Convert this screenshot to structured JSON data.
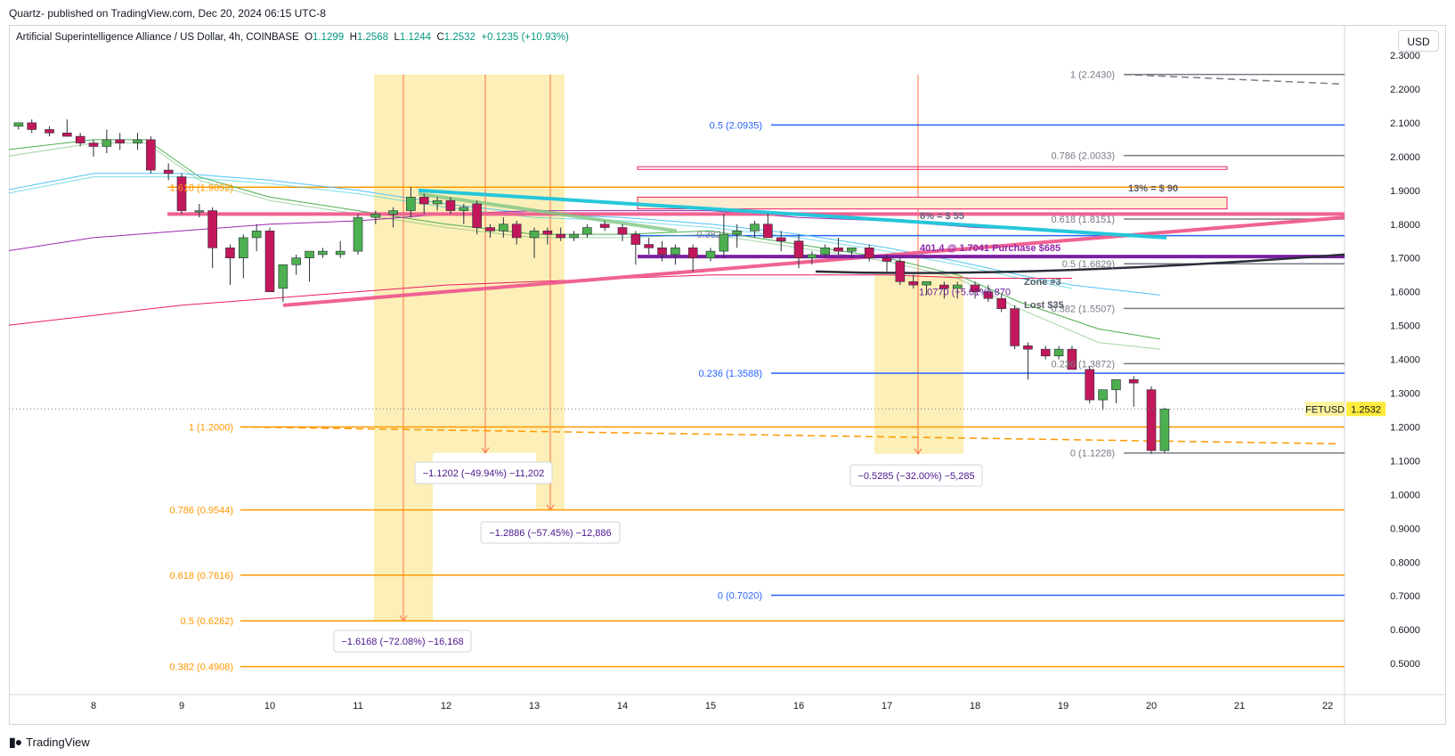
{
  "header": {
    "published": "Quartz- published on TradingView.com, Dec 20, 2024 06:15 UTC-8"
  },
  "symbol": {
    "name": "Artificial Superintelligence Alliance / US Dollar, 4h, COINBASE",
    "o_label": "O",
    "o_value": "1.1299",
    "h_label": "H",
    "h_value": "1.2568",
    "l_label": "L",
    "l_value": "1.1244",
    "c_label": "C",
    "c_value": "1.2532",
    "change": "+0.1235 (+10.93%)"
  },
  "currency": "USD",
  "price_tag": {
    "ticker": "FETUSD",
    "value": "1.2532"
  },
  "footer": {
    "brand": "TradingView"
  },
  "chart_data": {
    "type": "candlestick",
    "ylim": [
      0.48,
      2.38
    ],
    "yticks": [
      "2.3000",
      "2.2000",
      "2.1000",
      "2.0000",
      "1.9000",
      "1.8000",
      "1.7000",
      "1.6000",
      "1.5000",
      "1.4000",
      "1.3000",
      "1.2000",
      "1.1000",
      "1.0000",
      "0.9000",
      "0.8000",
      "0.7000",
      "0.6000",
      "0.5000"
    ],
    "xticks": [
      "8",
      "9",
      "10",
      "11",
      "12",
      "13",
      "14",
      "15",
      "16",
      "17",
      "18",
      "19",
      "20",
      "21",
      "22"
    ],
    "last_price": 1.2532,
    "candles": [
      [
        7.15,
        2.09,
        2.1,
        2.08,
        2.1
      ],
      [
        7.3,
        2.1,
        2.11,
        2.07,
        2.08
      ],
      [
        7.5,
        2.08,
        2.09,
        2.06,
        2.07
      ],
      [
        7.7,
        2.07,
        2.11,
        2.06,
        2.06
      ],
      [
        7.85,
        2.06,
        2.07,
        2.03,
        2.04
      ],
      [
        8.0,
        2.04,
        2.05,
        2.0,
        2.03
      ],
      [
        8.15,
        2.03,
        2.08,
        2.01,
        2.05
      ],
      [
        8.3,
        2.05,
        2.07,
        2.02,
        2.04
      ],
      [
        8.5,
        2.04,
        2.07,
        2.02,
        2.05
      ],
      [
        8.65,
        2.05,
        2.06,
        1.95,
        1.96
      ],
      [
        8.85,
        1.96,
        1.98,
        1.93,
        1.95
      ],
      [
        9.0,
        1.94,
        1.95,
        1.83,
        1.84
      ],
      [
        9.2,
        1.84,
        1.86,
        1.82,
        1.84
      ],
      [
        9.35,
        1.84,
        1.85,
        1.67,
        1.73
      ],
      [
        9.55,
        1.73,
        1.74,
        1.62,
        1.7
      ],
      [
        9.7,
        1.7,
        1.77,
        1.64,
        1.76
      ],
      [
        9.85,
        1.76,
        1.8,
        1.72,
        1.78
      ],
      [
        10.0,
        1.78,
        1.79,
        1.6,
        1.6
      ],
      [
        10.15,
        1.61,
        1.68,
        1.57,
        1.68
      ],
      [
        10.3,
        1.68,
        1.71,
        1.65,
        1.7
      ],
      [
        10.45,
        1.7,
        1.72,
        1.63,
        1.72
      ],
      [
        10.6,
        1.71,
        1.73,
        1.7,
        1.72
      ],
      [
        10.8,
        1.71,
        1.75,
        1.7,
        1.72
      ],
      [
        11.0,
        1.72,
        1.83,
        1.71,
        1.82
      ],
      [
        11.2,
        1.82,
        1.84,
        1.8,
        1.83
      ],
      [
        11.4,
        1.83,
        1.85,
        1.79,
        1.84
      ],
      [
        11.6,
        1.84,
        1.91,
        1.82,
        1.88
      ],
      [
        11.75,
        1.88,
        1.89,
        1.83,
        1.86
      ],
      [
        11.9,
        1.86,
        1.88,
        1.84,
        1.87
      ],
      [
        12.05,
        1.87,
        1.88,
        1.83,
        1.84
      ],
      [
        12.2,
        1.84,
        1.86,
        1.8,
        1.85
      ],
      [
        12.35,
        1.86,
        1.87,
        1.77,
        1.79
      ],
      [
        12.5,
        1.79,
        1.8,
        1.76,
        1.78
      ],
      [
        12.65,
        1.78,
        1.82,
        1.76,
        1.8
      ],
      [
        12.8,
        1.8,
        1.81,
        1.74,
        1.76
      ],
      [
        13.0,
        1.76,
        1.79,
        1.7,
        1.78
      ],
      [
        13.15,
        1.78,
        1.79,
        1.74,
        1.77
      ],
      [
        13.3,
        1.77,
        1.79,
        1.75,
        1.76
      ],
      [
        13.45,
        1.76,
        1.78,
        1.75,
        1.77
      ],
      [
        13.6,
        1.77,
        1.8,
        1.76,
        1.79
      ],
      [
        13.8,
        1.8,
        1.81,
        1.78,
        1.79
      ],
      [
        14.0,
        1.79,
        1.8,
        1.75,
        1.77
      ],
      [
        14.15,
        1.77,
        1.78,
        1.68,
        1.74
      ],
      [
        14.3,
        1.74,
        1.76,
        1.71,
        1.73
      ],
      [
        14.45,
        1.73,
        1.75,
        1.69,
        1.71
      ],
      [
        14.6,
        1.71,
        1.74,
        1.68,
        1.73
      ],
      [
        14.8,
        1.73,
        1.74,
        1.66,
        1.7
      ],
      [
        15.0,
        1.7,
        1.73,
        1.69,
        1.72
      ],
      [
        15.15,
        1.72,
        1.83,
        1.7,
        1.77
      ],
      [
        15.3,
        1.77,
        1.8,
        1.73,
        1.78
      ],
      [
        15.5,
        1.78,
        1.81,
        1.76,
        1.8
      ],
      [
        15.65,
        1.8,
        1.83,
        1.76,
        1.76
      ],
      [
        15.8,
        1.76,
        1.78,
        1.72,
        1.75
      ],
      [
        16.0,
        1.75,
        1.77,
        1.67,
        1.7
      ],
      [
        16.15,
        1.7,
        1.72,
        1.68,
        1.71
      ],
      [
        16.3,
        1.71,
        1.74,
        1.7,
        1.73
      ],
      [
        16.45,
        1.73,
        1.76,
        1.71,
        1.72
      ],
      [
        16.6,
        1.72,
        1.73,
        1.7,
        1.73
      ],
      [
        16.8,
        1.73,
        1.74,
        1.69,
        1.7
      ],
      [
        17.0,
        1.7,
        1.71,
        1.66,
        1.69
      ],
      [
        17.15,
        1.69,
        1.7,
        1.62,
        1.63
      ],
      [
        17.3,
        1.63,
        1.65,
        1.61,
        1.62
      ],
      [
        17.45,
        1.62,
        1.63,
        1.59,
        1.63
      ],
      [
        17.65,
        1.62,
        1.63,
        1.58,
        1.61
      ],
      [
        17.8,
        1.61,
        1.63,
        1.58,
        1.62
      ],
      [
        18.0,
        1.62,
        1.63,
        1.58,
        1.6
      ],
      [
        18.15,
        1.6,
        1.62,
        1.57,
        1.58
      ],
      [
        18.3,
        1.58,
        1.59,
        1.54,
        1.55
      ],
      [
        18.45,
        1.55,
        1.56,
        1.43,
        1.44
      ],
      [
        18.6,
        1.44,
        1.45,
        1.34,
        1.43
      ],
      [
        18.8,
        1.43,
        1.44,
        1.4,
        1.41
      ],
      [
        18.95,
        1.41,
        1.44,
        1.4,
        1.43
      ],
      [
        19.1,
        1.43,
        1.44,
        1.37,
        1.37
      ],
      [
        19.3,
        1.37,
        1.38,
        1.27,
        1.28
      ],
      [
        19.45,
        1.28,
        1.31,
        1.25,
        1.31
      ],
      [
        19.6,
        1.31,
        1.34,
        1.27,
        1.34
      ],
      [
        19.8,
        1.34,
        1.35,
        1.26,
        1.33
      ],
      [
        20.0,
        1.31,
        1.32,
        1.12,
        1.13
      ],
      [
        20.15,
        1.1299,
        1.2568,
        1.1244,
        1.2532
      ]
    ],
    "annotations": {
      "fib_labels": [
        "1 (2.2430)",
        "0.5 (2.0935)",
        "0.786 (2.0033)",
        "0.618 (1.8151)",
        "0.382 (1.5507)",
        "0.5 (1.6829)",
        "0.236 (1.3872)",
        "0.236 (1.3588)",
        "1 (1.2000)",
        "0 (1.1228)",
        "0.786 (0.9544)",
        "0.618 (0.7616)",
        "0.5 (0.6262)",
        "0.382 (0.4908)",
        "0 (0.7020)",
        "1.618 (1.9092)",
        "0.382",
        "1.0770 (+5.01%) 870"
      ],
      "measure_labels": [
        "−1.1202 (−49.94%) −11,202",
        "−1.2886 (−57.45%) −12,886",
        "−1.6168 (−72.08%) −16,168",
        "−0.5285 (−32.00%) −5,285"
      ],
      "notes": [
        "13% = $ 90",
        "8% = $ 55",
        "401.4 @ 1.7041 Purchase $685",
        "Zone #3",
        "Lost $35"
      ]
    },
    "colors": {
      "up": "#089981",
      "down": "#f23645",
      "fib_orange": "#ff9800",
      "fib_blue": "#2962ff",
      "pink": "#f06292"
    }
  }
}
